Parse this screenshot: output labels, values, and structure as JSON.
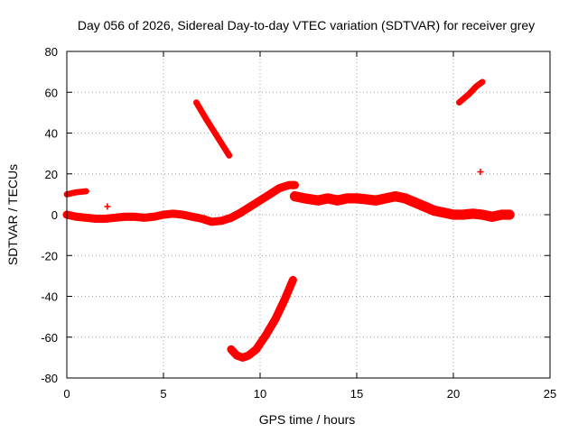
{
  "chart_data": {
    "type": "scatter",
    "title": "Day 056 of 2026, Sidereal Day-to-day VTEC variation (SDTVAR) for receiver grey",
    "xlabel": "GPS time / hours",
    "ylabel": "SDTVAR / TECUs",
    "xlim": [
      0,
      25
    ],
    "ylim": [
      -80,
      80
    ],
    "xticks": [
      0,
      5,
      10,
      15,
      20,
      25
    ],
    "yticks": [
      -80,
      -60,
      -40,
      -20,
      0,
      20,
      40,
      60,
      80
    ],
    "grid": true,
    "marker": "+",
    "color": "#ff0000",
    "series": [
      {
        "name": "baseline-a",
        "width": 4,
        "x": [
          0,
          0.5,
          1.0,
          1.5,
          2.0,
          2.5,
          3.0,
          3.5,
          4.0,
          4.5,
          5.0,
          5.5,
          6.0,
          6.5,
          7.0,
          7.5,
          8.0,
          8.5,
          9.0,
          9.5,
          10.0,
          10.5,
          11.0,
          11.5,
          11.8
        ],
        "y": [
          0,
          -1,
          -1.5,
          -2,
          -2,
          -1.5,
          -1,
          -1,
          -1.5,
          -1,
          0,
          0.5,
          0,
          -1,
          -2,
          -3.5,
          -3,
          -1.5,
          1,
          4,
          7,
          10,
          13,
          14.5,
          14.5
        ]
      },
      {
        "name": "baseline-b",
        "width": 5,
        "x": [
          11.8,
          12.3,
          13.0,
          13.5,
          14.0,
          14.5,
          15.0,
          15.5,
          16.0,
          16.5,
          17.0,
          17.5,
          18.0,
          18.5,
          19.0,
          19.5,
          20.0,
          20.5,
          21.0,
          21.5,
          22.0,
          22.5,
          22.9
        ],
        "y": [
          9,
          8,
          7,
          8,
          7,
          8,
          8,
          7.5,
          7,
          8,
          9,
          8,
          6,
          4,
          2,
          1,
          0,
          0,
          0.5,
          0,
          -1,
          0,
          0
        ]
      },
      {
        "name": "early-offset",
        "width": 3,
        "x": [
          0.0,
          0.5,
          1.0
        ],
        "y": [
          10,
          11,
          11.5
        ]
      },
      {
        "name": "pass-descending",
        "width": 3,
        "x": [
          6.7,
          7.2,
          7.8,
          8.4
        ],
        "y": [
          55,
          47,
          38,
          29
        ]
      },
      {
        "name": "pass-negative",
        "width": 4,
        "x": [
          8.5,
          8.8,
          9.1,
          9.4,
          9.8,
          10.3,
          10.8,
          11.3,
          11.7
        ],
        "y": [
          -66,
          -69,
          -70,
          -69,
          -66,
          -59,
          -51,
          -41,
          -32
        ]
      },
      {
        "name": "pass-late",
        "width": 3,
        "x": [
          20.3,
          20.8,
          21.2,
          21.5
        ],
        "y": [
          55,
          59,
          63,
          65
        ]
      }
    ],
    "isolated_points": [
      {
        "x": 2.1,
        "y": 4
      },
      {
        "x": 21.4,
        "y": 21
      }
    ]
  }
}
